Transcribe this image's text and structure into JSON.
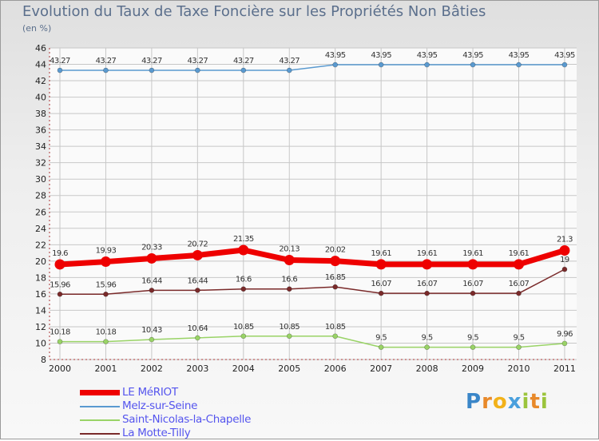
{
  "title": "Evolution du Taux de Taxe Foncière sur les Propriétés Non Bâties",
  "unit_label": "(en %)",
  "logo_text": "Proxiti",
  "colors": {
    "le_meriot": "#ee0000",
    "melz": "#5a9ad0",
    "saint_nicolas": "#99d366",
    "la_motte": "#7a2a2a",
    "grid": "#c7c7c7",
    "axis": "#aa3333"
  },
  "chart_data": {
    "type": "line",
    "x": [
      "2000",
      "2001",
      "2002",
      "2003",
      "2004",
      "2005",
      "2006",
      "2007",
      "2008",
      "2009",
      "2010",
      "2011"
    ],
    "ylim": [
      8,
      46
    ],
    "yticks": [
      "8",
      "10",
      "12",
      "14",
      "16",
      "18",
      "20",
      "22",
      "24",
      "26",
      "28",
      "30",
      "32",
      "34",
      "36",
      "38",
      "40",
      "42",
      "44",
      "46"
    ],
    "grid": true,
    "legend_position": "bottom-left",
    "series": [
      {
        "name": "LE MéRIOT",
        "values": [
          19.6,
          19.93,
          20.33,
          20.72,
          21.35,
          20.13,
          20.02,
          19.61,
          19.61,
          19.61,
          19.61,
          21.3
        ],
        "labels": [
          "19.6",
          "19.93",
          "20.33",
          "20.72",
          "21.35",
          "20.13",
          "20.02",
          "19.61",
          "19.61",
          "19.61",
          "19.61",
          "21.3"
        ]
      },
      {
        "name": "Melz-sur-Seine",
        "values": [
          43.27,
          43.27,
          43.27,
          43.27,
          43.27,
          43.27,
          43.95,
          43.95,
          43.95,
          43.95,
          43.95,
          43.95
        ],
        "labels": [
          "43.27",
          "43.27",
          "43.27",
          "43.27",
          "43.27",
          "43.27",
          "43.95",
          "43.95",
          "43.95",
          "43.95",
          "43.95",
          "43.95"
        ]
      },
      {
        "name": "Saint-Nicolas-la-Chapelle",
        "values": [
          10.18,
          10.18,
          10.43,
          10.64,
          10.85,
          10.85,
          10.85,
          9.5,
          9.5,
          9.5,
          9.5,
          9.96
        ],
        "labels": [
          "10.18",
          "10.18",
          "10.43",
          "10.64",
          "10.85",
          "10.85",
          "10.85",
          "9.5",
          "9.5",
          "9.5",
          "9.5",
          "9.96"
        ]
      },
      {
        "name": "La Motte-Tilly",
        "values": [
          15.96,
          15.96,
          16.44,
          16.44,
          16.6,
          16.6,
          16.85,
          16.07,
          16.07,
          16.07,
          16.07,
          19
        ],
        "labels": [
          "15.96",
          "15.96",
          "16.44",
          "16.44",
          "16.6",
          "16.6",
          "16.85",
          "16.07",
          "16.07",
          "16.07",
          "16.07",
          "19"
        ]
      }
    ]
  }
}
